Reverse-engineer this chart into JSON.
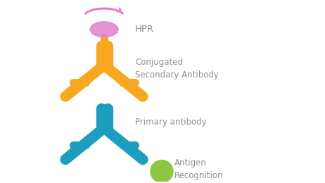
{
  "background_color": "#ffffff",
  "antibody_orange_color": "#F5A820",
  "antibody_blue_color": "#1E9EBF",
  "hrp_color": "#E080CC",
  "antigen_color": "#8DC63F",
  "text_color": "#909090",
  "labels": {
    "hrp": "HPR",
    "secondary": "Conjugated\nSecondary Antibody",
    "primary": "Primary antibody",
    "antigen": "Antigen\nRecognition"
  },
  "label_fontsize": 8.5,
  "fig_width": 4.62,
  "fig_height": 2.6,
  "dpi": 100
}
